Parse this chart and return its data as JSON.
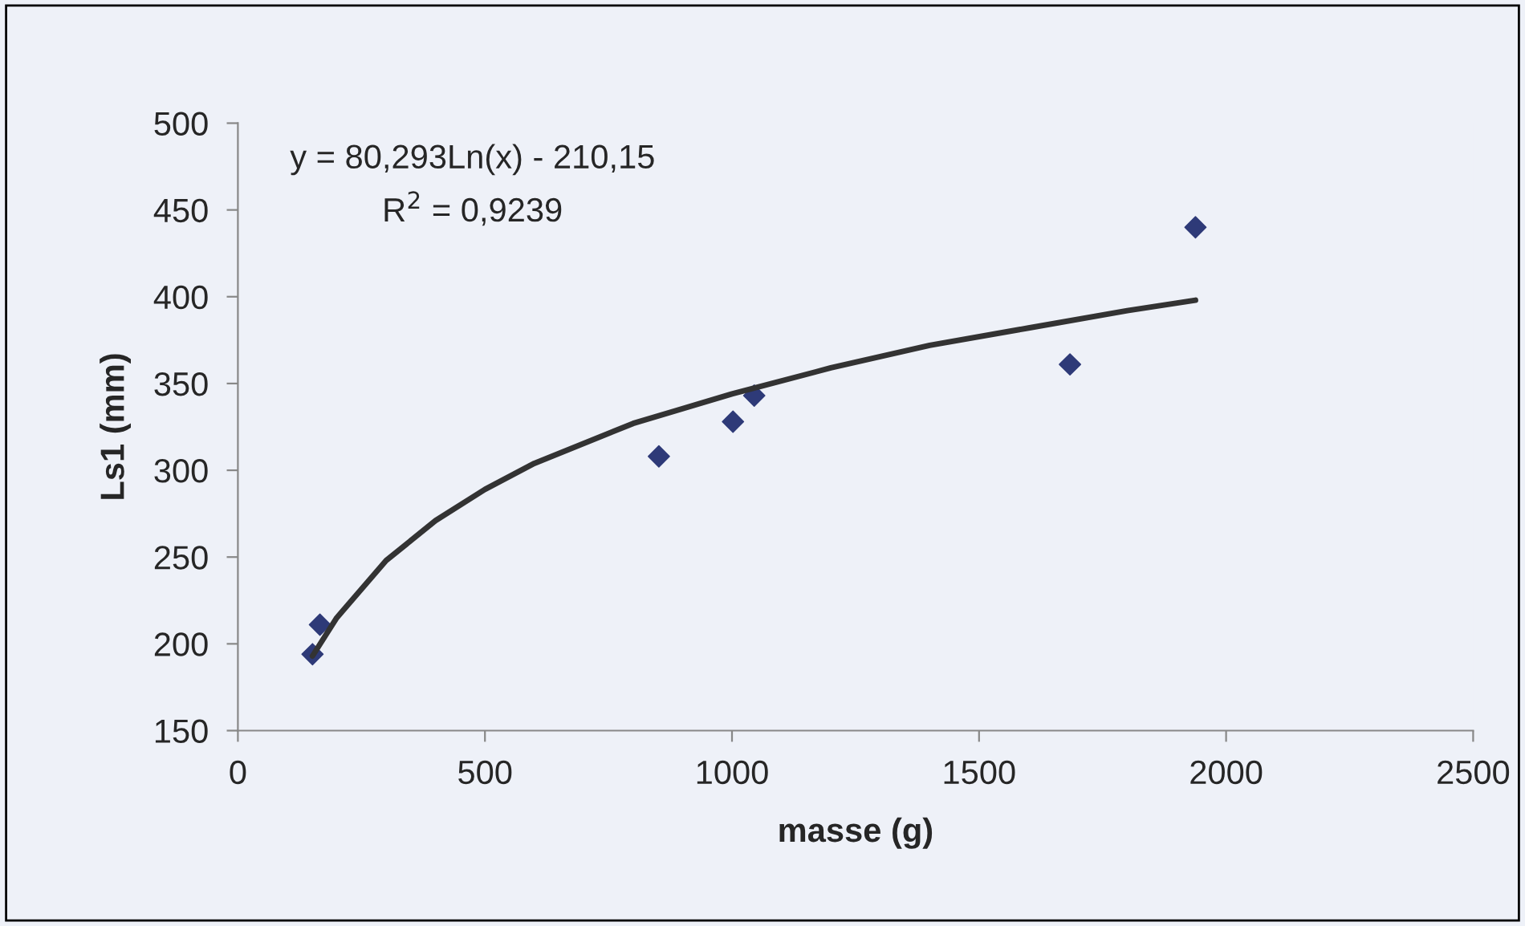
{
  "chart_data": {
    "type": "scatter",
    "xlabel": "masse (g)",
    "ylabel": "Ls1 (mm)",
    "annotations": [
      "y = 80,293Ln(x) - 210,15",
      "R$^{2}$ = 0,9239"
    ],
    "xlim": [
      0,
      2500
    ],
    "xticks": [
      0,
      500,
      1000,
      1500,
      2000,
      2500
    ],
    "ylim": [
      150,
      500
    ],
    "yticks": [
      150,
      200,
      250,
      300,
      350,
      400,
      450,
      500
    ],
    "grid": false,
    "legend": false,
    "marker": "diamond",
    "series": [
      {
        "color": "#2e3a78",
        "x": [
          151,
          166,
          852,
          1002,
          1045,
          1684,
          1938
        ],
        "values": [
          194,
          211,
          308,
          328,
          343,
          361,
          440
        ]
      },
      {
        "type": "line",
        "color": "#333333",
        "marker": "none",
        "line_style": "solid",
        "x": [
          151,
          200,
          300,
          400,
          500,
          600,
          800,
          1000,
          1200,
          1400,
          1600,
          1800,
          1938
        ],
        "values": [
          193,
          215,
          248,
          271,
          289,
          304,
          327,
          344,
          359,
          372,
          382,
          392,
          398
        ]
      }
    ]
  }
}
